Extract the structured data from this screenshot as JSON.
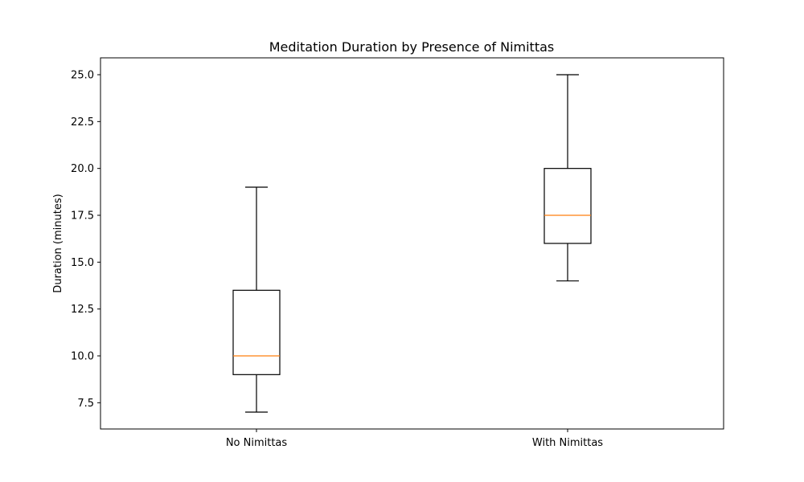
{
  "chart_data": {
    "type": "boxplot",
    "title": "Meditation Duration by Presence of Nimittas",
    "xlabel": "",
    "ylabel": "Duration (minutes)",
    "categories": [
      "No Nimittas",
      "With Nimittas"
    ],
    "boxes": [
      {
        "category": "No Nimittas",
        "whisker_low": 7.0,
        "q1": 9.0,
        "median": 10.0,
        "q3": 13.5,
        "whisker_high": 19.0
      },
      {
        "category": "With Nimittas",
        "whisker_low": 14.0,
        "q1": 16.0,
        "median": 17.5,
        "q3": 20.0,
        "whisker_high": 25.0
      }
    ],
    "ylim": [
      6.1,
      25.9
    ],
    "yticks": [
      7.5,
      10.0,
      12.5,
      15.0,
      17.5,
      20.0,
      22.5,
      25.0
    ],
    "ytick_labels": [
      "7.5",
      "10.0",
      "12.5",
      "15.0",
      "17.5",
      "20.0",
      "22.5",
      "25.0"
    ],
    "grid": false,
    "colors": {
      "box": "#000000",
      "median": "#ff7f0e",
      "whisker": "#000000",
      "axes": "#000000",
      "background": "#ffffff"
    }
  }
}
